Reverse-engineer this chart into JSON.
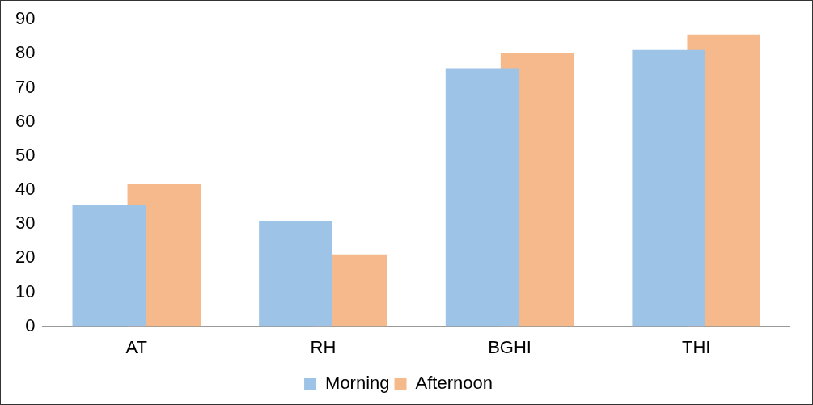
{
  "chart_data": {
    "type": "bar",
    "categories": [
      "AT",
      "RH",
      "BGHI",
      "THI"
    ],
    "series": [
      {
        "name": "Morning",
        "color": "#9dc3e6",
        "values": [
          35.5,
          30.8,
          75.7,
          81.1
        ]
      },
      {
        "name": "Afternoon",
        "color": "#f4ad78",
        "values": [
          41.7,
          21.1,
          80.1,
          85.6
        ]
      }
    ],
    "ylim": [
      0,
      90
    ],
    "yticks": [
      0,
      10,
      20,
      30,
      40,
      50,
      60,
      70,
      80,
      90
    ],
    "grid": false,
    "legend": "bottom"
  }
}
